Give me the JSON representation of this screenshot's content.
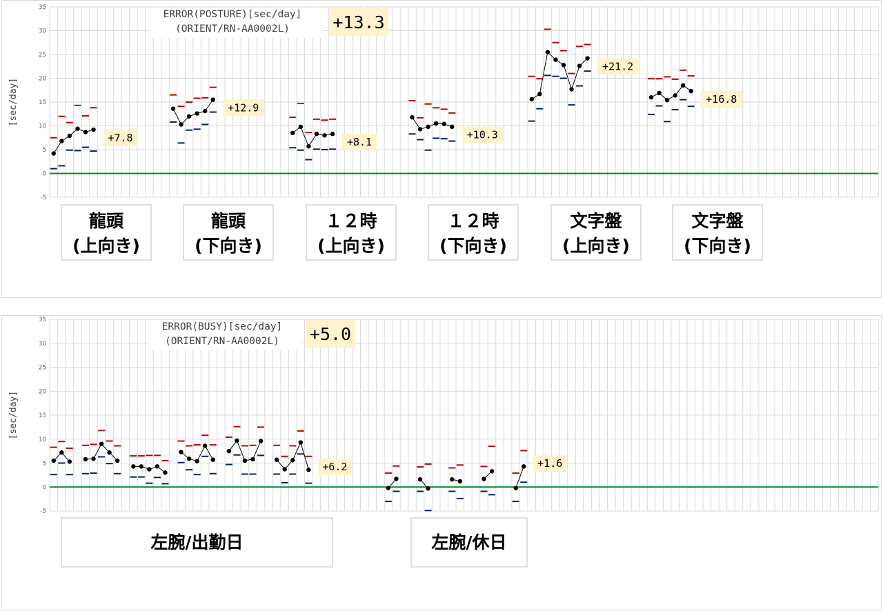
{
  "chart_data": [
    {
      "type": "line",
      "title": "ERROR(POSTURE)[sec/day]",
      "subtitle": "(ORIENT/RN-AA0002L)",
      "total": "+13.3",
      "ylabel": "[sec/day]",
      "ylim": [
        -5,
        35
      ],
      "yticks": [
        "-5",
        "0",
        "5",
        "10",
        "15",
        "20",
        "25",
        "30",
        "35"
      ],
      "grid": true,
      "reference_line": 0,
      "colors": {
        "line": "#000000",
        "max": "#c00000",
        "min": "#002060",
        "zero": "#00882b",
        "grid": "#d9d9d9"
      },
      "groups": [
        {
          "category": [
            "龍頭",
            "(上向き)"
          ],
          "label": "+7.8",
          "start": 1,
          "values": [
            4.2,
            6.8,
            7.9,
            9.4,
            8.7,
            9.2
          ],
          "max": [
            7.5,
            12.0,
            10.7,
            14.3,
            12.1,
            13.8
          ],
          "min": [
            1.0,
            1.6,
            4.9,
            4.8,
            5.5,
            4.7
          ]
        },
        {
          "category": [
            "龍頭",
            "(下向き)"
          ],
          "label": "+12.9",
          "start": 16,
          "values": [
            13.6,
            10.3,
            12.0,
            12.6,
            13.1,
            15.5
          ],
          "max": [
            16.5,
            14.1,
            15.0,
            15.8,
            15.9,
            18.1
          ],
          "min": [
            10.8,
            6.4,
            9.1,
            9.3,
            10.3,
            12.9
          ]
        },
        {
          "category": [
            "１２時",
            "(上向き)"
          ],
          "label": "+8.1",
          "start": 31,
          "values": [
            8.5,
            9.8,
            5.7,
            8.3,
            8.0,
            8.3
          ],
          "max": [
            11.8,
            14.7,
            8.6,
            11.4,
            11.2,
            11.4
          ],
          "min": [
            5.4,
            4.9,
            2.9,
            5.1,
            5.0,
            5.1
          ]
        },
        {
          "category": [
            "１２時",
            "(下向き)"
          ],
          "label": "+10.3",
          "start": 46,
          "values": [
            11.8,
            9.3,
            9.8,
            10.5,
            10.4,
            9.8
          ],
          "max": [
            15.3,
            11.7,
            14.6,
            13.8,
            13.5,
            12.7
          ],
          "min": [
            8.3,
            7.1,
            4.9,
            7.4,
            7.3,
            6.8
          ]
        },
        {
          "category": [
            "文字盤",
            "(上向き)"
          ],
          "label": "+21.2",
          "start": 61,
          "values": [
            15.6,
            16.7,
            25.5,
            23.9,
            22.8,
            17.7,
            22.6,
            24.2
          ],
          "max": [
            20.4,
            19.9,
            30.3,
            27.5,
            25.8,
            21.0,
            26.7,
            27.1
          ],
          "min": [
            11.0,
            13.6,
            20.6,
            20.4,
            20.0,
            14.4,
            18.4,
            21.5
          ]
        },
        {
          "category": [
            "文字盤",
            "(下向き)"
          ],
          "label": "+16.8",
          "start": 76,
          "values": [
            16.0,
            16.9,
            15.4,
            16.4,
            18.5,
            17.3
          ],
          "max": [
            19.9,
            19.9,
            20.3,
            19.8,
            21.7,
            20.5
          ],
          "min": [
            12.4,
            14.2,
            10.9,
            13.4,
            15.5,
            14.1
          ]
        }
      ]
    },
    {
      "type": "line",
      "title": "ERROR(BUSY)[sec/day]",
      "subtitle": "(ORIENT/RN-AA0002L)",
      "total": "+5.0",
      "ylabel": "[sec/day]",
      "ylim": [
        -5,
        35
      ],
      "yticks": [
        "-5",
        "0",
        "5",
        "10",
        "15",
        "20",
        "25",
        "30",
        "35"
      ],
      "grid": true,
      "reference_line": 0,
      "colors": {
        "line": "#000000",
        "max": "#c00000",
        "min": "#002060",
        "zero": "#00882b",
        "grid": "#d9d9d9"
      },
      "categories": [
        {
          "label": "左腕/出勤日",
          "from": 1,
          "to": 35
        },
        {
          "label": "左腕/休日",
          "from": 43,
          "to": 56
        }
      ],
      "groups": [
        {
          "label": "",
          "start": 1,
          "values": [
            5.5,
            7.2,
            5.3
          ],
          "max": [
            8.3,
            9.5,
            8.1
          ],
          "min": [
            2.6,
            5.0,
            2.6
          ]
        },
        {
          "label": "",
          "start": 5,
          "values": [
            5.8,
            5.9,
            9.0,
            7.2,
            5.5
          ],
          "max": [
            8.7,
            8.9,
            11.8,
            9.6,
            8.6
          ],
          "min": [
            2.8,
            2.9,
            6.3,
            4.9,
            2.8
          ]
        },
        {
          "label": "",
          "start": 11,
          "values": [
            4.3,
            4.3,
            3.7,
            4.3,
            3.0
          ],
          "max": [
            6.5,
            6.5,
            6.6,
            6.6,
            5.5
          ],
          "min": [
            2.1,
            2.1,
            0.8,
            2.0,
            0.7
          ]
        },
        {
          "label": "",
          "start": 17,
          "values": [
            7.3,
            5.9,
            5.4,
            8.6,
            5.7
          ],
          "max": [
            9.6,
            8.6,
            8.8,
            10.8,
            8.8
          ],
          "min": [
            5.1,
            3.6,
            2.6,
            6.4,
            2.8
          ]
        },
        {
          "label": "",
          "start": 23,
          "values": [
            7.5,
            9.7,
            5.5,
            5.8,
            9.6
          ],
          "max": [
            10.4,
            12.6,
            8.6,
            8.7,
            12.5
          ],
          "min": [
            4.7,
            6.7,
            2.7,
            2.7,
            6.6
          ]
        },
        {
          "label": "+6.2",
          "start": 29,
          "values": [
            5.7,
            3.7,
            5.6,
            9.3,
            3.6
          ],
          "max": [
            8.7,
            6.4,
            8.6,
            11.7,
            6.4
          ],
          "min": [
            2.7,
            0.9,
            2.7,
            6.9,
            0.8
          ]
        },
        {
          "label": "",
          "start": 43,
          "values": [
            -0.2,
            1.7
          ],
          "max": [
            2.9,
            4.4
          ],
          "min": [
            -3.0,
            -0.9
          ]
        },
        {
          "label": "",
          "start": 47,
          "values": [
            1.6,
            -0.3
          ],
          "max": [
            4.2,
            4.8
          ],
          "min": [
            -0.9,
            -4.9
          ]
        },
        {
          "label": "",
          "start": 51,
          "values": [
            1.6,
            1.2
          ],
          "max": [
            4.0,
            4.6
          ],
          "min": [
            -0.9,
            -2.4
          ]
        },
        {
          "label": "",
          "start": 55,
          "values": [
            1.7,
            3.3
          ],
          "max": [
            4.3,
            8.5
          ],
          "min": [
            -0.9,
            -1.6
          ]
        },
        {
          "label": "+1.6",
          "start": 59,
          "values": [
            -0.2,
            4.3
          ],
          "max": [
            2.9,
            7.6
          ],
          "min": [
            -3.0,
            1.0
          ]
        }
      ]
    }
  ]
}
